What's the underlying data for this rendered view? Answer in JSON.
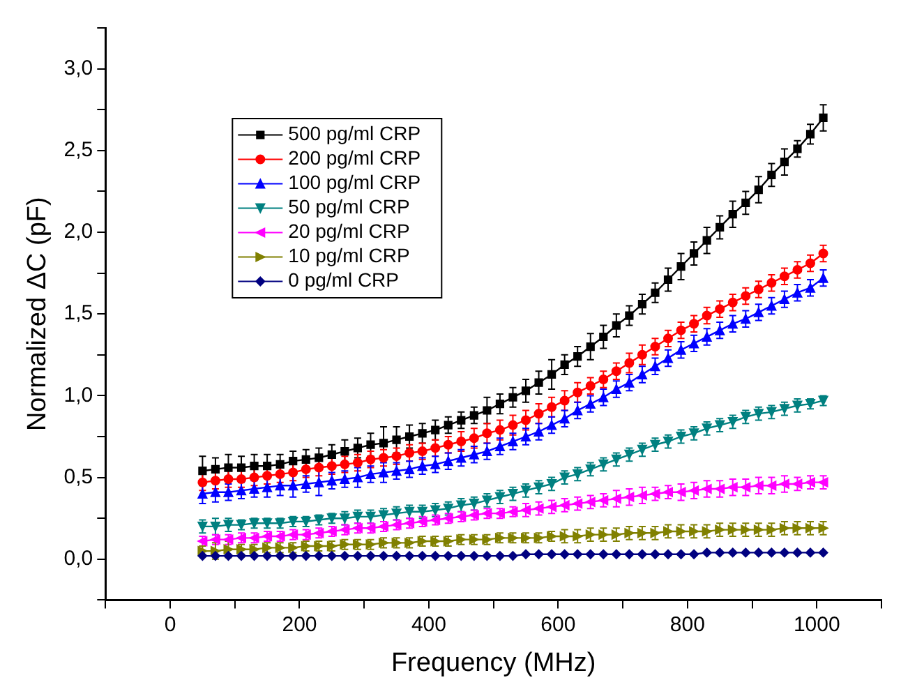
{
  "chart_data": {
    "type": "line",
    "xlabel": "Frequency (MHz)",
    "ylabel": "Normalized ΔC (pF)",
    "x": [
      50,
      70,
      90,
      110,
      130,
      150,
      170,
      190,
      210,
      230,
      250,
      270,
      290,
      310,
      330,
      350,
      370,
      390,
      410,
      430,
      450,
      470,
      490,
      510,
      530,
      550,
      570,
      590,
      610,
      630,
      650,
      670,
      690,
      710,
      730,
      750,
      770,
      790,
      810,
      830,
      850,
      870,
      890,
      910,
      930,
      950,
      970,
      990,
      1010
    ],
    "xlim": [
      -100,
      1100
    ],
    "xticks": [
      {
        "value": -100,
        "label": null
      },
      0,
      {
        "value": 100,
        "label": null
      },
      200,
      {
        "value": 300,
        "label": null
      },
      400,
      {
        "value": 500,
        "label": null
      },
      600,
      {
        "value": 700,
        "label": null
      },
      800,
      {
        "value": 900,
        "label": null
      },
      1000,
      {
        "value": 1100,
        "label": null
      }
    ],
    "ylim": [
      -0.25,
      3.25
    ],
    "yticks": [
      {
        "value": -0.25,
        "label": null
      },
      {
        "value": 0,
        "label": "0,0"
      },
      {
        "value": 0.25,
        "label": null
      },
      {
        "value": 0.5,
        "label": "0,5"
      },
      {
        "value": 0.75,
        "label": null
      },
      {
        "value": 1,
        "label": "1,0"
      },
      {
        "value": 1.25,
        "label": null
      },
      {
        "value": 1.5,
        "label": "1,5"
      },
      {
        "value": 1.75,
        "label": null
      },
      {
        "value": 2,
        "label": "2,0"
      },
      {
        "value": 2.25,
        "label": null
      },
      {
        "value": 2.5,
        "label": "2,5"
      },
      {
        "value": 2.75,
        "label": null
      },
      {
        "value": 3,
        "label": "3,0"
      },
      {
        "value": 3.25,
        "label": null
      }
    ],
    "grid": false,
    "legend": "top left",
    "line_style": "solid",
    "series": [
      {
        "name": "500 pg/ml CRP",
        "color": "#000000",
        "marker": "square",
        "values": [
          0.54,
          0.55,
          0.56,
          0.56,
          0.57,
          0.57,
          0.58,
          0.6,
          0.61,
          0.62,
          0.64,
          0.66,
          0.68,
          0.7,
          0.71,
          0.73,
          0.75,
          0.77,
          0.79,
          0.82,
          0.85,
          0.88,
          0.91,
          0.95,
          0.99,
          1.03,
          1.08,
          1.13,
          1.19,
          1.24,
          1.3,
          1.36,
          1.43,
          1.49,
          1.56,
          1.63,
          1.71,
          1.79,
          1.87,
          1.95,
          2.03,
          2.11,
          2.18,
          2.26,
          2.35,
          2.43,
          2.51,
          2.6,
          2.7
        ],
        "errors": [
          0.09,
          0.07,
          0.08,
          0.07,
          0.07,
          0.07,
          0.06,
          0.06,
          0.06,
          0.06,
          0.06,
          0.07,
          0.06,
          0.07,
          0.1,
          0.08,
          0.07,
          0.06,
          0.06,
          0.05,
          0.05,
          0.05,
          0.08,
          0.06,
          0.06,
          0.07,
          0.07,
          0.09,
          0.06,
          0.06,
          0.08,
          0.07,
          0.07,
          0.06,
          0.06,
          0.06,
          0.07,
          0.08,
          0.07,
          0.08,
          0.07,
          0.08,
          0.07,
          0.08,
          0.07,
          0.08,
          0.05,
          0.06,
          0.08
        ]
      },
      {
        "name": "200 pg/ml CRP",
        "color": "#ff0000",
        "marker": "circle",
        "values": [
          0.47,
          0.48,
          0.49,
          0.49,
          0.5,
          0.51,
          0.52,
          0.53,
          0.55,
          0.56,
          0.57,
          0.58,
          0.59,
          0.61,
          0.62,
          0.63,
          0.65,
          0.66,
          0.68,
          0.7,
          0.72,
          0.74,
          0.77,
          0.79,
          0.82,
          0.85,
          0.89,
          0.93,
          0.97,
          1.02,
          1.06,
          1.1,
          1.15,
          1.2,
          1.25,
          1.3,
          1.35,
          1.4,
          1.44,
          1.49,
          1.53,
          1.57,
          1.61,
          1.65,
          1.69,
          1.73,
          1.77,
          1.81,
          1.87
        ],
        "errors": [
          0.05,
          0.05,
          0.05,
          0.05,
          0.05,
          0.05,
          0.05,
          0.05,
          0.05,
          0.05,
          0.05,
          0.05,
          0.05,
          0.05,
          0.05,
          0.05,
          0.05,
          0.05,
          0.05,
          0.05,
          0.06,
          0.06,
          0.06,
          0.06,
          0.06,
          0.06,
          0.06,
          0.06,
          0.06,
          0.06,
          0.05,
          0.05,
          0.05,
          0.06,
          0.06,
          0.05,
          0.05,
          0.05,
          0.05,
          0.05,
          0.05,
          0.05,
          0.05,
          0.05,
          0.05,
          0.05,
          0.05,
          0.05,
          0.05
        ]
      },
      {
        "name": "100 pg/ml CRP",
        "color": "#0000ff",
        "marker": "triangle",
        "values": [
          0.4,
          0.41,
          0.41,
          0.42,
          0.43,
          0.44,
          0.45,
          0.45,
          0.46,
          0.47,
          0.48,
          0.49,
          0.5,
          0.52,
          0.53,
          0.54,
          0.55,
          0.57,
          0.58,
          0.6,
          0.62,
          0.64,
          0.66,
          0.69,
          0.72,
          0.75,
          0.78,
          0.82,
          0.86,
          0.91,
          0.95,
          0.99,
          1.04,
          1.08,
          1.13,
          1.18,
          1.23,
          1.28,
          1.32,
          1.36,
          1.4,
          1.44,
          1.47,
          1.51,
          1.55,
          1.59,
          1.63,
          1.66,
          1.72
        ],
        "errors": [
          0.06,
          0.06,
          0.05,
          0.05,
          0.05,
          0.06,
          0.06,
          0.07,
          0.05,
          0.08,
          0.05,
          0.05,
          0.06,
          0.05,
          0.06,
          0.05,
          0.05,
          0.05,
          0.05,
          0.05,
          0.05,
          0.05,
          0.05,
          0.05,
          0.05,
          0.05,
          0.05,
          0.05,
          0.05,
          0.05,
          0.05,
          0.05,
          0.05,
          0.05,
          0.05,
          0.05,
          0.05,
          0.05,
          0.05,
          0.05,
          0.05,
          0.05,
          0.05,
          0.05,
          0.05,
          0.05,
          0.05,
          0.05,
          0.05
        ]
      },
      {
        "name": "50 pg/ml CRP",
        "color": "#008080",
        "marker": "triangle-down",
        "values": [
          0.2,
          0.2,
          0.21,
          0.21,
          0.22,
          0.22,
          0.22,
          0.23,
          0.23,
          0.24,
          0.25,
          0.25,
          0.26,
          0.26,
          0.27,
          0.28,
          0.29,
          0.29,
          0.3,
          0.31,
          0.33,
          0.34,
          0.36,
          0.38,
          0.4,
          0.42,
          0.44,
          0.46,
          0.5,
          0.52,
          0.55,
          0.58,
          0.61,
          0.64,
          0.67,
          0.7,
          0.72,
          0.75,
          0.77,
          0.8,
          0.82,
          0.84,
          0.87,
          0.89,
          0.9,
          0.92,
          0.94,
          0.95,
          0.97
        ],
        "errors": [
          0.04,
          0.05,
          0.04,
          0.03,
          0.03,
          0.03,
          0.03,
          0.03,
          0.03,
          0.03,
          0.03,
          0.04,
          0.04,
          0.04,
          0.04,
          0.04,
          0.04,
          0.04,
          0.04,
          0.04,
          0.04,
          0.04,
          0.04,
          0.04,
          0.04,
          0.04,
          0.04,
          0.04,
          0.04,
          0.04,
          0.04,
          0.04,
          0.04,
          0.04,
          0.04,
          0.04,
          0.04,
          0.04,
          0.04,
          0.04,
          0.04,
          0.04,
          0.04,
          0.04,
          0.04,
          0.04,
          0.04,
          0.03,
          0.03
        ]
      },
      {
        "name": "20 pg/ml CRP",
        "color": "#ff00ff",
        "marker": "triangle-left",
        "values": [
          0.11,
          0.12,
          0.12,
          0.13,
          0.13,
          0.14,
          0.14,
          0.15,
          0.15,
          0.16,
          0.17,
          0.18,
          0.19,
          0.19,
          0.2,
          0.21,
          0.22,
          0.23,
          0.24,
          0.25,
          0.26,
          0.27,
          0.28,
          0.28,
          0.29,
          0.3,
          0.31,
          0.32,
          0.33,
          0.34,
          0.35,
          0.36,
          0.37,
          0.38,
          0.39,
          0.4,
          0.41,
          0.41,
          0.42,
          0.43,
          0.43,
          0.44,
          0.44,
          0.45,
          0.45,
          0.46,
          0.46,
          0.47,
          0.47
        ],
        "errors": [
          0.03,
          0.03,
          0.03,
          0.03,
          0.03,
          0.03,
          0.03,
          0.03,
          0.03,
          0.03,
          0.03,
          0.03,
          0.03,
          0.03,
          0.03,
          0.03,
          0.03,
          0.03,
          0.03,
          0.03,
          0.03,
          0.03,
          0.03,
          0.03,
          0.03,
          0.04,
          0.04,
          0.04,
          0.04,
          0.04,
          0.04,
          0.04,
          0.05,
          0.05,
          0.05,
          0.04,
          0.04,
          0.05,
          0.05,
          0.05,
          0.05,
          0.05,
          0.05,
          0.05,
          0.05,
          0.05,
          0.04,
          0.04,
          0.04
        ]
      },
      {
        "name": "10 pg/ml CRP",
        "color": "#808000",
        "marker": "triangle-right",
        "values": [
          0.05,
          0.05,
          0.06,
          0.06,
          0.06,
          0.07,
          0.07,
          0.07,
          0.08,
          0.08,
          0.08,
          0.09,
          0.09,
          0.09,
          0.1,
          0.1,
          0.1,
          0.11,
          0.11,
          0.11,
          0.12,
          0.12,
          0.12,
          0.13,
          0.13,
          0.13,
          0.13,
          0.14,
          0.14,
          0.14,
          0.15,
          0.15,
          0.15,
          0.16,
          0.16,
          0.16,
          0.17,
          0.17,
          0.17,
          0.17,
          0.18,
          0.18,
          0.18,
          0.18,
          0.18,
          0.19,
          0.19,
          0.19,
          0.19
        ],
        "errors": [
          0.03,
          0.05,
          0.05,
          0.03,
          0.03,
          0.03,
          0.03,
          0.03,
          0.03,
          0.03,
          0.03,
          0.03,
          0.03,
          0.03,
          0.03,
          0.03,
          0.03,
          0.03,
          0.03,
          0.03,
          0.03,
          0.03,
          0.03,
          0.03,
          0.03,
          0.03,
          0.03,
          0.03,
          0.04,
          0.04,
          0.04,
          0.04,
          0.04,
          0.04,
          0.04,
          0.04,
          0.04,
          0.04,
          0.04,
          0.04,
          0.04,
          0.04,
          0.04,
          0.04,
          0.04,
          0.04,
          0.04,
          0.04,
          0.04
        ]
      },
      {
        "name": "0 pg/ml CRP",
        "color": "#000080",
        "marker": "diamond",
        "values": [
          0.02,
          0.02,
          0.02,
          0.02,
          0.02,
          0.02,
          0.02,
          0.02,
          0.02,
          0.02,
          0.02,
          0.02,
          0.02,
          0.02,
          0.02,
          0.02,
          0.02,
          0.02,
          0.02,
          0.02,
          0.02,
          0.02,
          0.02,
          0.02,
          0.02,
          0.03,
          0.03,
          0.03,
          0.03,
          0.03,
          0.03,
          0.03,
          0.03,
          0.03,
          0.03,
          0.03,
          0.03,
          0.03,
          0.03,
          0.04,
          0.04,
          0.04,
          0.04,
          0.04,
          0.04,
          0.04,
          0.04,
          0.04,
          0.04
        ]
      }
    ]
  }
}
